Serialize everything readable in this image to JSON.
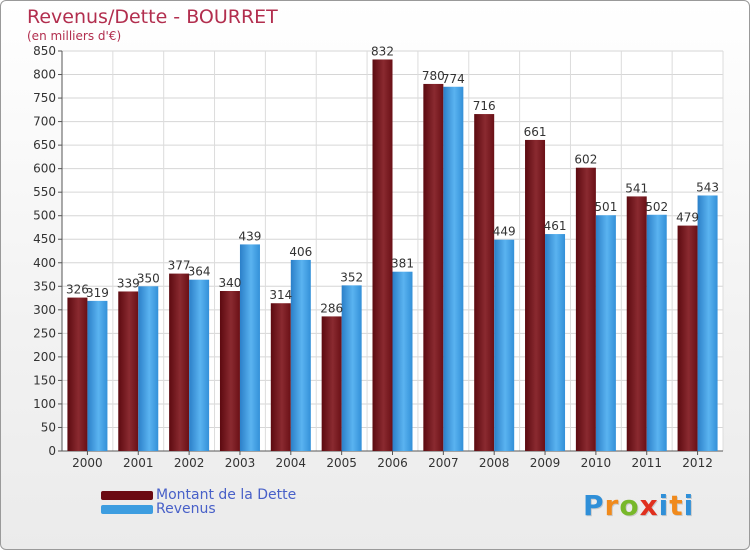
{
  "header": {
    "title": "Revenus/Dette - BOURRET",
    "subtitle": "(en milliers d'€)"
  },
  "chart_data": {
    "type": "bar",
    "categories": [
      "2000",
      "2001",
      "2002",
      "2003",
      "2004",
      "2005",
      "2006",
      "2007",
      "2008",
      "2009",
      "2010",
      "2011",
      "2012"
    ],
    "series": [
      {
        "name": "Montant de la Dette",
        "color": "#7a1a1e",
        "values": [
          326,
          339,
          377,
          340,
          314,
          286,
          832,
          780,
          716,
          661,
          602,
          541,
          479
        ]
      },
      {
        "name": "Revenus",
        "color": "#3d9de0",
        "values": [
          319,
          350,
          364,
          439,
          406,
          352,
          381,
          774,
          449,
          461,
          501,
          502,
          543
        ]
      }
    ],
    "title": "Revenus/Dette - BOURRET",
    "ylabel": "(en milliers d'€)",
    "ylim": [
      0,
      850
    ],
    "ytick_step": 50,
    "grid": true,
    "legend_placement": "bottom-left"
  },
  "legend": [
    {
      "label": "Montant de la Dette",
      "color": "#6b0a12"
    },
    {
      "label": "Revenus",
      "color": "#3d9de0"
    }
  ],
  "logo": {
    "letters": [
      "P",
      "r",
      "o",
      "x",
      "i",
      "t",
      "i"
    ],
    "colors": [
      "#2f8fd8",
      "#f08a1c",
      "#78b82a",
      "#e0301e",
      "#2f8fd8",
      "#f08a1c",
      "#2f8fd8"
    ]
  }
}
